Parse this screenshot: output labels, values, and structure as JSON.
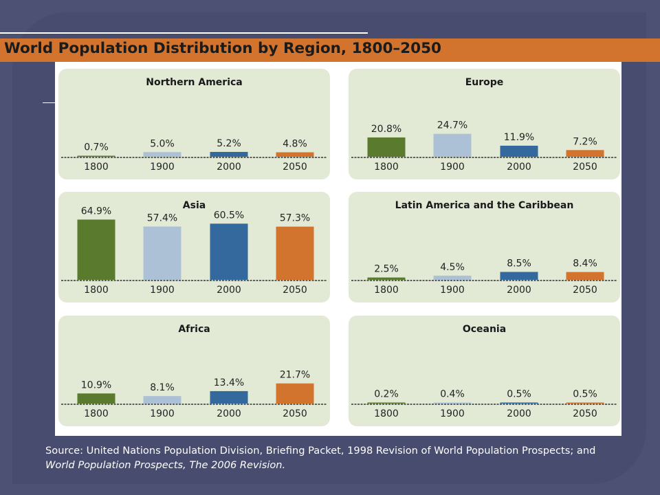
{
  "title": "World Population Distribution by Region, 1800–2050",
  "source": {
    "text": "Source: United Nations Population Division, Briefing Packet, 1998 Revision of World Population Prospects; and ",
    "italic": "World Population Prospects, The 2006 Revision."
  },
  "colors": {
    "1800": "#5a7a2e",
    "1900": "#adc1d6",
    "2000": "#33699c",
    "2050": "#d2742d",
    "panel": "#e2ead6",
    "background": "#4d5173",
    "title_bar": "#d2742d"
  },
  "chart_data": [
    {
      "type": "bar",
      "title": "Northern America",
      "categories": [
        "1800",
        "1900",
        "2000",
        "2050"
      ],
      "values": [
        0.7,
        5.0,
        5.2,
        4.8
      ],
      "labels": [
        "0.7%",
        "5.0%",
        "5.2%",
        "4.8%"
      ],
      "unit": "%",
      "ylim": [
        0,
        65
      ]
    },
    {
      "type": "bar",
      "title": "Europe",
      "categories": [
        "1800",
        "1900",
        "2000",
        "2050"
      ],
      "values": [
        20.8,
        24.7,
        11.9,
        7.2
      ],
      "labels": [
        "20.8%",
        "24.7%",
        "11.9%",
        "7.2%"
      ],
      "unit": "%",
      "ylim": [
        0,
        65
      ]
    },
    {
      "type": "bar",
      "title": "Asia",
      "categories": [
        "1800",
        "1900",
        "2000",
        "2050"
      ],
      "values": [
        64.9,
        57.4,
        60.5,
        57.3
      ],
      "labels": [
        "64.9%",
        "57.4%",
        "60.5%",
        "57.3%"
      ],
      "unit": "%",
      "ylim": [
        0,
        65
      ]
    },
    {
      "type": "bar",
      "title": "Latin America and the Caribbean",
      "categories": [
        "1800",
        "1900",
        "2000",
        "2050"
      ],
      "values": [
        2.5,
        4.5,
        8.5,
        8.4
      ],
      "labels": [
        "2.5%",
        "4.5%",
        "8.5%",
        "8.4%"
      ],
      "unit": "%",
      "ylim": [
        0,
        65
      ]
    },
    {
      "type": "bar",
      "title": "Africa",
      "categories": [
        "1800",
        "1900",
        "2000",
        "2050"
      ],
      "values": [
        10.9,
        8.1,
        13.4,
        21.7
      ],
      "labels": [
        "10.9%",
        "8.1%",
        "13.4%",
        "21.7%"
      ],
      "unit": "%",
      "ylim": [
        0,
        65
      ]
    },
    {
      "type": "bar",
      "title": "Oceania",
      "categories": [
        "1800",
        "1900",
        "2000",
        "2050"
      ],
      "values": [
        0.2,
        0.4,
        0.5,
        0.5
      ],
      "labels": [
        "0.2%",
        "0.4%",
        "0.5%",
        "0.5%"
      ],
      "unit": "%",
      "ylim": [
        0,
        65
      ]
    }
  ]
}
